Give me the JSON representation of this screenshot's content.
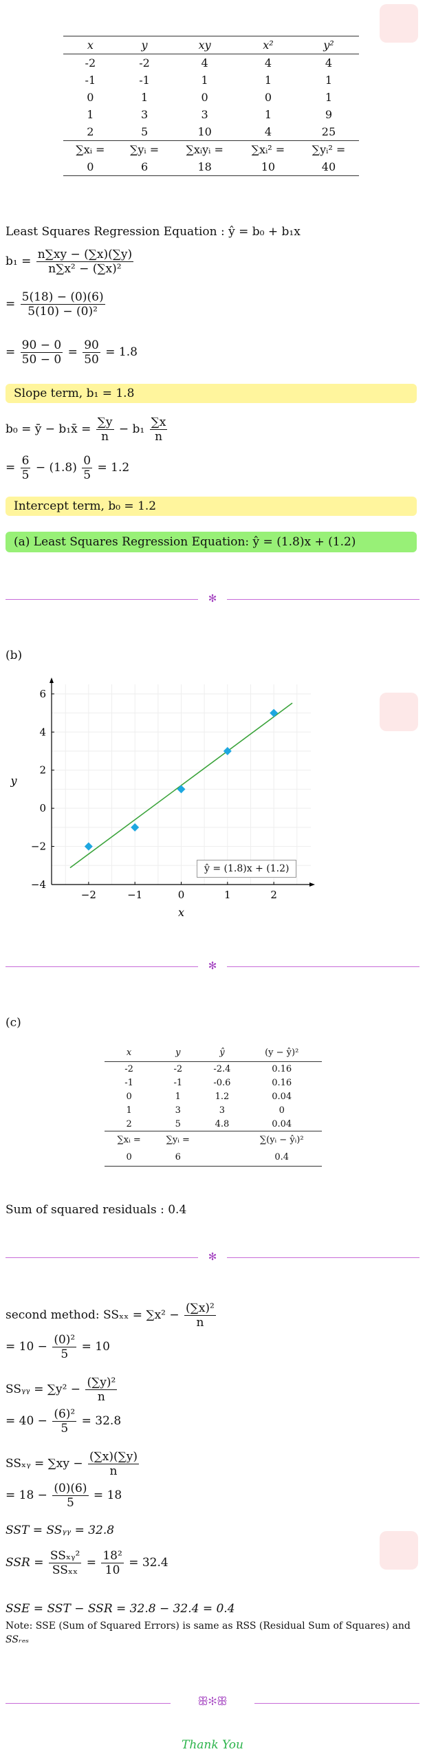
{
  "table1": {
    "headers": [
      "x",
      "y",
      "xy",
      "x²",
      "y²"
    ],
    "rows": [
      [
        "-2",
        "-2",
        "4",
        "4",
        "4"
      ],
      [
        "-1",
        "-1",
        "1",
        "1",
        "1"
      ],
      [
        "0",
        "1",
        "0",
        "0",
        "1"
      ],
      [
        "1",
        "3",
        "3",
        "1",
        "9"
      ],
      [
        "2",
        "5",
        "10",
        "4",
        "25"
      ]
    ],
    "sum_labels": [
      "∑xᵢ =",
      "∑yᵢ =",
      "∑xᵢyᵢ =",
      "∑xᵢ² =",
      "∑yᵢ² ="
    ],
    "sums": [
      "0",
      "6",
      "18",
      "10",
      "40"
    ]
  },
  "part_a": {
    "lsr_title": "Least Squares Regression Equation : ŷ = b₀ + b₁x",
    "b1_lhs": "b₁ =",
    "b1_num": "n∑xy − (∑x)(∑y)",
    "b1_den": "n∑x² − (∑x)²",
    "b1_step1_eq": "=",
    "b1_step1_num": "5(18) − (0)(6)",
    "b1_step1_den": "5(10) − (0)²",
    "b1_step2_eq": "=",
    "b1_step2_num": "90 − 0",
    "b1_step2_den": "50 − 0",
    "b1_step2_mid": "=",
    "b1_step2_num2": "90",
    "b1_step2_den2": "50",
    "b1_step2_result": "= 1.8",
    "slope_box": "Slope term, b₁ = 1.8",
    "b0_lhs": "b₀ = ȳ − b₁x̄ =",
    "b0_num1": "∑y",
    "b0_den1": "n",
    "b0_mid": "− b₁",
    "b0_num2": "∑x",
    "b0_den2": "n",
    "b0_step_eq": "=",
    "b0_step_num1": "6",
    "b0_step_den1": "5",
    "b0_step_mid": "− (1.8)",
    "b0_step_num2": "0",
    "b0_step_den2": "5",
    "b0_step_result": "= 1.2",
    "intercept_box": "Intercept term, b₀ = 1.2",
    "equation_box": "(a) Least Squares Regression Equation: ŷ = (1.8)x + (1.2)"
  },
  "part_b": {
    "label": "(b)",
    "chart_data": {
      "type": "scatter",
      "xlabel": "x",
      "ylabel": "y",
      "xlim": [
        -2.8,
        2.8
      ],
      "ylim": [
        -4,
        6.5
      ],
      "xticks": [
        "−2",
        "−1",
        "0",
        "1",
        "2"
      ],
      "yticks": [
        "−4",
        "−2",
        "0",
        "2",
        "4",
        "6"
      ],
      "points": [
        [
          -2,
          -2
        ],
        [
          -1,
          -1
        ],
        [
          0,
          1
        ],
        [
          1,
          3
        ],
        [
          2,
          5
        ]
      ],
      "line": {
        "slope": 1.8,
        "intercept": 1.2,
        "x_range": [
          -2.4,
          2.4
        ]
      },
      "legend": "ŷ = (1.8)x + (1.2)",
      "legend_position": "bottom-right",
      "grid": true,
      "colors": {
        "points": "#1ea7e0",
        "line": "#3aa33a"
      }
    }
  },
  "part_c": {
    "label": "(c)",
    "headers": [
      "x",
      "y",
      "ŷ",
      "(y − ŷ)²"
    ],
    "rows": [
      [
        "-2",
        "-2",
        "-2.4",
        "0.16"
      ],
      [
        "-1",
        "-1",
        "-0.6",
        "0.16"
      ],
      [
        "0",
        "1",
        "1.2",
        "0.04"
      ],
      [
        "1",
        "3",
        "3",
        "0"
      ],
      [
        "2",
        "5",
        "4.8",
        "0.04"
      ]
    ],
    "sum_labels": [
      "∑xᵢ =",
      "∑yᵢ =",
      "",
      "∑(yᵢ − ŷᵢ)²"
    ],
    "sums": [
      "0",
      "6",
      "",
      "0.4"
    ],
    "ssr_text": "Sum of squared residuals : 0.4"
  },
  "second_method": {
    "ssxx_lhs": "second method: SSₓₓ = ∑x² −",
    "ssxx_num": "(∑x)²",
    "ssxx_den": "n",
    "ssxx_step_lhs": "= 10 −",
    "ssxx_step_num": "(0)²",
    "ssxx_step_den": "5",
    "ssxx_step_result": "= 10",
    "ssyy_lhs": "SSᵧᵧ = ∑y² −",
    "ssyy_num": "(∑y)²",
    "ssyy_den": "n",
    "ssyy_step_lhs": "= 40 −",
    "ssyy_step_num": "(6)²",
    "ssyy_step_den": "5",
    "ssyy_step_result": "= 32.8",
    "ssxy_lhs": "SSₓᵧ = ∑xy −",
    "ssxy_num": "(∑x)(∑y)",
    "ssxy_den": "n",
    "ssxy_step_lhs": "= 18 −",
    "ssxy_step_num": "(0)(6)",
    "ssxy_step_den": "5",
    "ssxy_step_result": "= 18",
    "sst_line": "SST = SSᵧᵧ = 32.8",
    "ssr_lhs": "SSR =",
    "ssr_num": "SSₓᵧ²",
    "ssr_den": "SSₓₓ",
    "ssr_mid": "=",
    "ssr_num2": "18²",
    "ssr_den2": "10",
    "ssr_result": "= 32.4",
    "sse_line": "SSE = SST − SSR = 32.8 − 32.4 = 0.4",
    "note_line1": "Note: SSE (Sum of Squared Errors) is same as RSS (Residual Sum of Squares) and",
    "note_line2": "SSᵣₑₛ"
  },
  "footer": {
    "ornament": "ꕥ✻ꕥ",
    "divider_glyph": "✻",
    "thank_you": "Thank You",
    "thank_you_color": "#2bb34a"
  }
}
